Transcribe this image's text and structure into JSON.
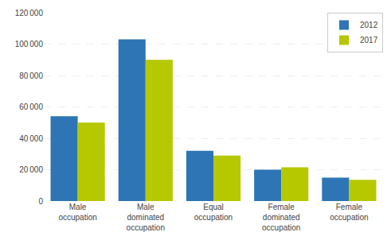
{
  "chart_data": {
    "type": "bar",
    "categories": [
      "Male\noccupation",
      "Male\ndominated\noccupation",
      "Equal\noccupation",
      "Female\ndominated\noccupation",
      "Female\noccupation"
    ],
    "series": [
      {
        "name": "2012",
        "color": "#2e75b6",
        "values": [
          54000,
          103000,
          32000,
          20000,
          15000
        ]
      },
      {
        "name": "2017",
        "color": "#b5c800",
        "values": [
          50000,
          90000,
          29000,
          21500,
          13500
        ]
      }
    ],
    "ylim": [
      0,
      120000
    ],
    "yticks": [
      0,
      {
        "value": 20000,
        "label": "20 000"
      },
      {
        "value": 40000,
        "label": "40 000"
      },
      {
        "value": 60000,
        "label": "60 000"
      },
      {
        "value": 80000,
        "label": "80 000"
      },
      {
        "value": 100000,
        "label": "100 000"
      },
      {
        "value": 120000,
        "label": "120 000"
      }
    ],
    "grid": true,
    "legend": "upper right"
  }
}
